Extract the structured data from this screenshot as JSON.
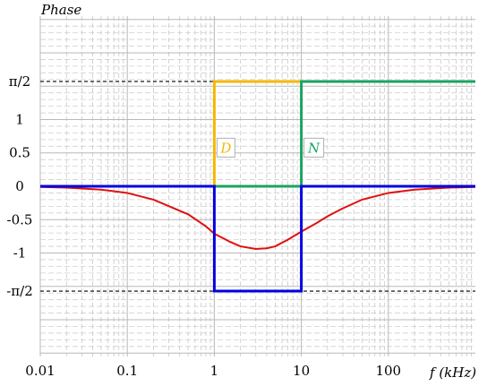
{
  "chart_data": {
    "type": "line",
    "title": "",
    "ylabel": "Phase",
    "xlabel": "f (kHz)",
    "x_scale": "log",
    "xlim": [
      0.01,
      1000
    ],
    "ylim": [
      -2.55,
      2.55
    ],
    "grid": true,
    "x_tick_labels": [
      "0.01",
      "0.1",
      "1",
      "10",
      "100"
    ],
    "x_ticks": [
      0.01,
      0.1,
      1,
      10,
      100
    ],
    "y_ticks": [
      {
        "value": 1.5708,
        "label": "π/2"
      },
      {
        "value": 1,
        "label": "1"
      },
      {
        "value": 0.5,
        "label": "0.5"
      },
      {
        "value": 0,
        "label": "0"
      },
      {
        "value": -0.5,
        "label": "-0.5"
      },
      {
        "value": -1,
        "label": "-1"
      },
      {
        "value": -1.5708,
        "label": "-π/2"
      }
    ],
    "reference_lines": [
      1.5708,
      -1.5708
    ],
    "series": [
      {
        "name": "D",
        "color": "#f5b800",
        "x": [
          0.01,
          1,
          1,
          1000
        ],
        "y": [
          0,
          0,
          1.5708,
          1.5708
        ]
      },
      {
        "name": "N",
        "color": "#1aa360",
        "x": [
          0.01,
          10,
          10,
          1000
        ],
        "y": [
          0,
          0,
          1.5708,
          1.5708
        ]
      },
      {
        "name": "",
        "color": "#0000e0",
        "x": [
          0.01,
          1,
          1,
          10,
          10,
          1000
        ],
        "y": [
          0,
          0,
          -1.5708,
          -1.5708,
          0,
          0
        ]
      },
      {
        "name": "",
        "color": "#e01010",
        "x": [
          0.01,
          0.02,
          0.05,
          0.1,
          0.2,
          0.5,
          0.8,
          1,
          1.5,
          2,
          3,
          4,
          5,
          7,
          10,
          15,
          20,
          30,
          50,
          100,
          200,
          500,
          1000
        ],
        "y": [
          -0.01,
          -0.02,
          -0.05,
          -0.1,
          -0.2,
          -0.42,
          -0.6,
          -0.71,
          -0.83,
          -0.9,
          -0.94,
          -0.93,
          -0.9,
          -0.8,
          -0.68,
          -0.55,
          -0.45,
          -0.33,
          -0.2,
          -0.1,
          -0.05,
          -0.02,
          -0.01
        ]
      }
    ],
    "annotations": [
      {
        "text": "D",
        "color": "#f5b800"
      },
      {
        "text": "N",
        "color": "#1aa360"
      }
    ]
  }
}
